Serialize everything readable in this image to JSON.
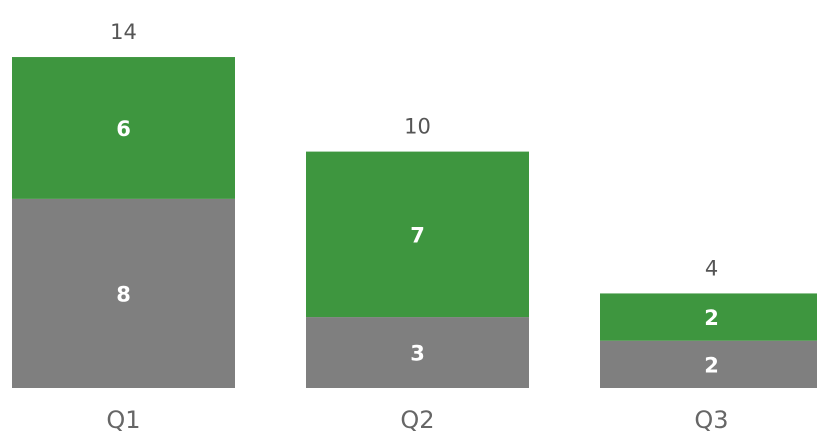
{
  "chart_data": {
    "type": "bar",
    "stacked": true,
    "categories": [
      "Q1",
      "Q2",
      "Q3"
    ],
    "series": [
      {
        "values": [
          8,
          3,
          2
        ],
        "color": "#7f7f7f"
      },
      {
        "values": [
          6,
          7,
          2
        ],
        "color": "#3e963f"
      }
    ],
    "totals": [
      "14",
      "10",
      "4"
    ],
    "segment_labels": [
      [
        "8",
        "3",
        "2"
      ],
      [
        "6",
        "7",
        "2"
      ]
    ],
    "title": "",
    "xlabel": "",
    "ylabel": "",
    "ylim": [
      0,
      14
    ],
    "grid": false,
    "legend": "none",
    "axes_visible": false
  }
}
